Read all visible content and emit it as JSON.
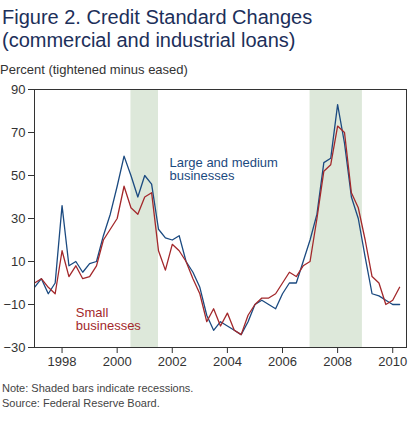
{
  "chart_data": {
    "type": "line",
    "title": "Figure 2. Credit Standard Changes (commercial and industrial loans)",
    "y_label": "Percent (tightened minus eased)",
    "notes": [
      "Note: Shaded bars indicate recessions.",
      "Source: Federal Reserve Board."
    ],
    "x": [
      1997,
      1997.25,
      1997.5,
      1997.75,
      1998,
      1998.25,
      1998.5,
      1998.75,
      1999,
      1999.25,
      1999.5,
      1999.75,
      2000,
      2000.25,
      2000.5,
      2000.75,
      2001,
      2001.25,
      2001.5,
      2001.75,
      2002,
      2002.25,
      2002.5,
      2002.75,
      2003,
      2003.25,
      2003.5,
      2003.75,
      2004,
      2004.25,
      2004.5,
      2004.75,
      2005,
      2005.25,
      2005.5,
      2005.75,
      2006,
      2006.25,
      2006.5,
      2006.75,
      2007,
      2007.25,
      2007.5,
      2007.75,
      2008,
      2008.25,
      2008.5,
      2008.75,
      2009,
      2009.25,
      2009.5,
      2009.75,
      2010,
      2010.25
    ],
    "series": [
      {
        "name": "Large and medium businesses",
        "color": "#1b4a80",
        "values": [
          -2,
          2,
          -5,
          0,
          36,
          8,
          10,
          5,
          9,
          10,
          22,
          32,
          45,
          59,
          50,
          40,
          50,
          46,
          25,
          21,
          20,
          22,
          10,
          5,
          -2,
          -15,
          -22,
          -18,
          -20,
          -22,
          -24,
          -18,
          -10,
          -8,
          -10,
          -12,
          -5,
          0,
          0,
          10,
          20,
          32,
          56,
          58,
          83,
          65,
          40,
          30,
          12,
          -5,
          -6,
          -8,
          -10,
          -10
        ]
      },
      {
        "name": "Small businesses",
        "color": "#a3282b",
        "values": [
          0,
          2,
          -2,
          -5,
          15,
          3,
          8,
          2,
          3,
          8,
          20,
          25,
          30,
          45,
          35,
          32,
          40,
          42,
          15,
          6,
          18,
          15,
          10,
          2,
          -5,
          -18,
          -12,
          -20,
          -14,
          -22,
          -24,
          -15,
          -10,
          -7,
          -7,
          -5,
          0,
          5,
          3,
          8,
          10,
          30,
          52,
          55,
          73,
          70,
          42,
          35,
          20,
          3,
          0,
          -10,
          -8,
          -2
        ]
      }
    ],
    "recessions": [
      {
        "start": 2000.5,
        "end": 2001.5
      },
      {
        "start": 2007.0,
        "end": 2008.9
      }
    ],
    "xlim": [
      1997,
      2010.5
    ],
    "xticks": [
      1998,
      2000,
      2002,
      2004,
      2006,
      2008,
      2010
    ],
    "ylim": [
      -30,
      90
    ],
    "yticks": [
      -30,
      -10,
      10,
      30,
      50,
      70,
      90
    ],
    "grid": false
  }
}
